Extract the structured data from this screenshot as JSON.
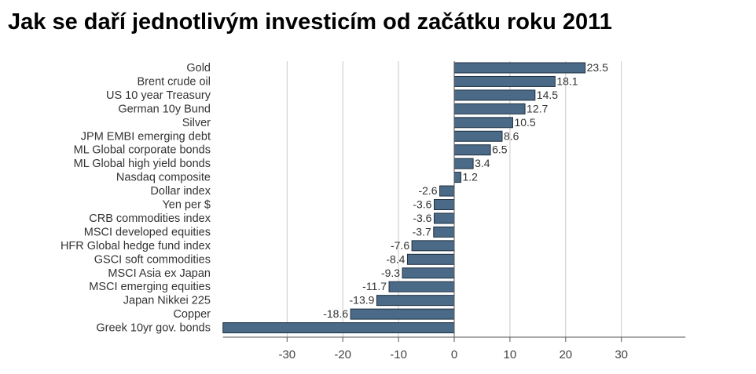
{
  "title": "Jak se daří jednotlivým investicím od začátku roku 2011",
  "colors": {
    "bar_fill": "#4a6a88",
    "bar_stroke": "#1f2f40",
    "grid": "#c8c8c8",
    "axis": "#555555"
  },
  "chart_data": {
    "type": "bar",
    "orientation": "horizontal",
    "title": "Jak se daří jednotlivým investicím od začátku roku 2011",
    "xlabel": "",
    "ylabel": "",
    "xlim": [
      -41.5,
      41.5
    ],
    "xticks": [
      -30,
      -20,
      -10,
      0,
      10,
      20,
      30
    ],
    "grid": true,
    "categories": [
      "Gold",
      "Brent crude oil",
      "US 10 year Treasury",
      "German 10y Bund",
      "Silver",
      "JPM EMBI emerging debt",
      "ML Global corporate bonds",
      "ML Global high yield bonds",
      "Nasdaq composite",
      "Dollar index",
      "Yen per $",
      "CRB commodities index",
      "MSCI developed equities",
      "HFR Global hedge fund index",
      "GSCI soft commodities",
      "MSCI Asia ex Japan",
      "MSCI emerging equities",
      "Japan Nikkei 225",
      "Copper",
      "Greek 10yr gov. bonds"
    ],
    "values": [
      23.5,
      18.1,
      14.5,
      12.7,
      10.5,
      8.6,
      6.5,
      3.4,
      1.2,
      -2.6,
      -3.6,
      -3.6,
      -3.7,
      -7.6,
      -8.4,
      -9.3,
      -11.7,
      -13.9,
      -18.6,
      -41.5
    ],
    "value_labels": [
      "23.5",
      "18.1",
      "14.5",
      "12.7",
      "10.5",
      "8.6",
      "6.5",
      "3.4",
      "1.2",
      "-2.6",
      "-3.6",
      "-3.6",
      "-3.7",
      "-7.6",
      "-8.4",
      "-9.3",
      "-11.7",
      "-13.9",
      "-18.6",
      ""
    ]
  }
}
